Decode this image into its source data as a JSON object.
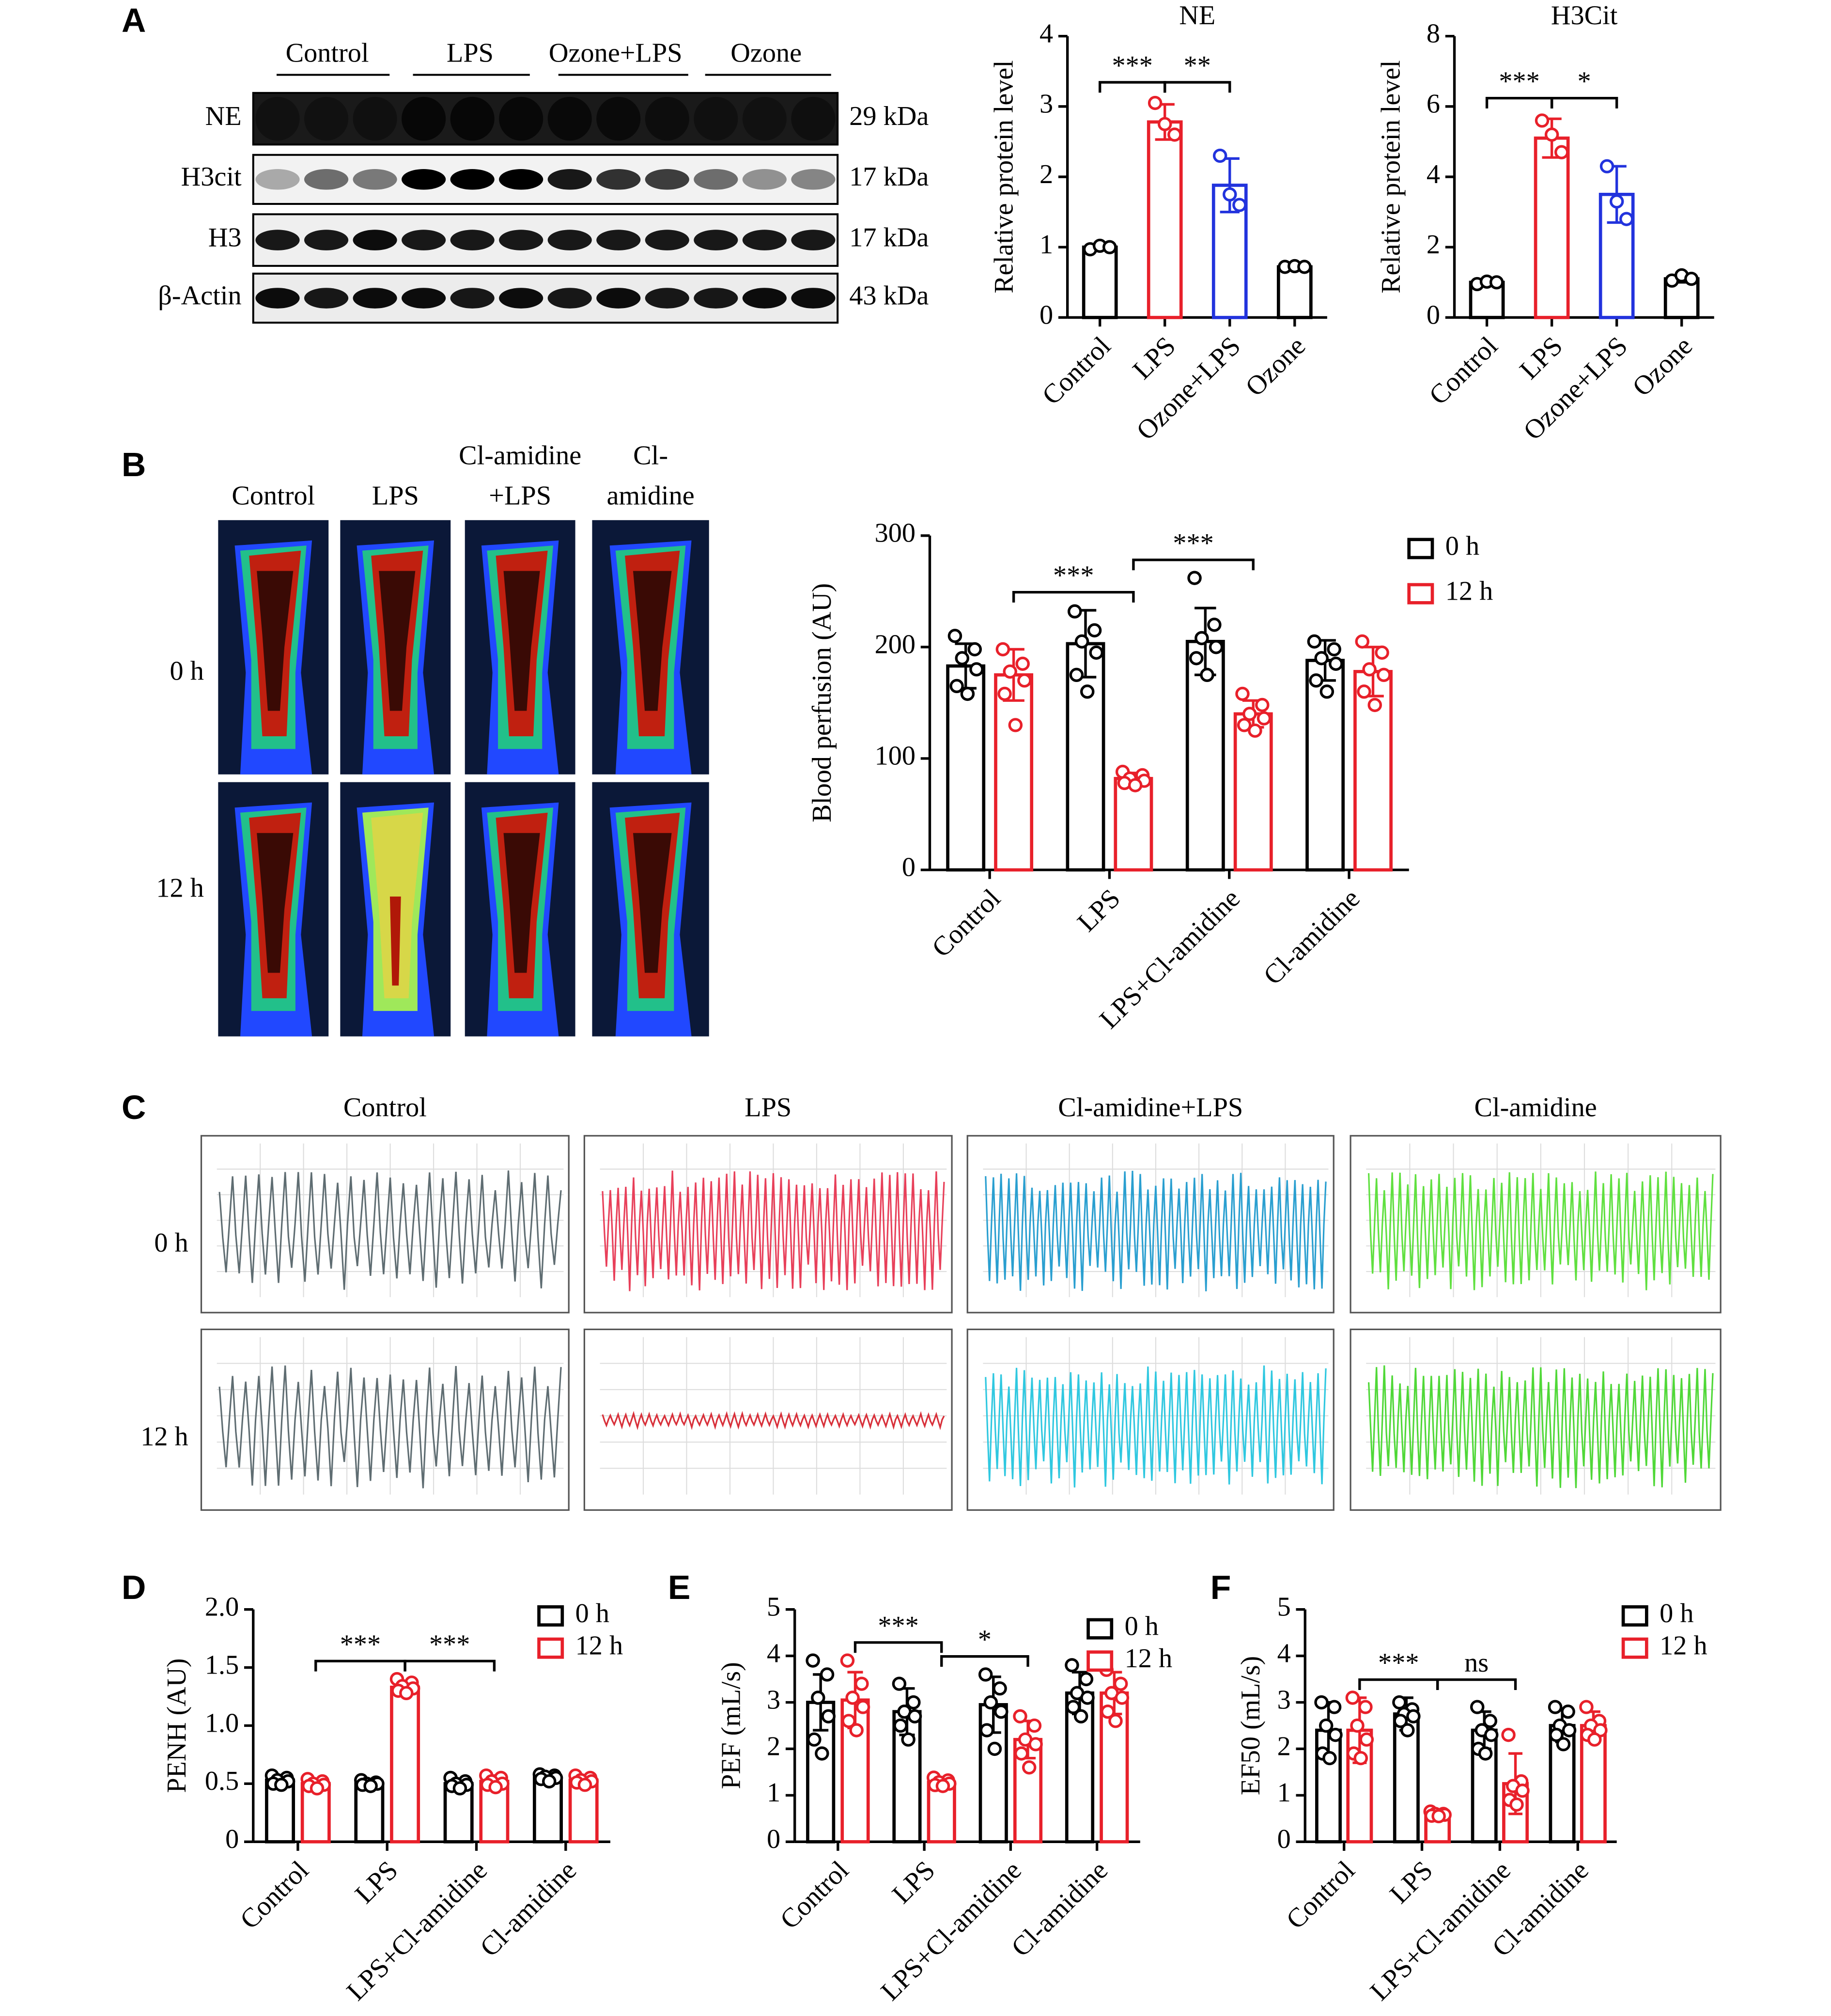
{
  "panel_labels": [
    "A",
    "B",
    "C",
    "D",
    "E",
    "F"
  ],
  "blot": {
    "lanes": [
      "Control",
      "LPS",
      "Ozone+LPS",
      "Ozone"
    ],
    "rows": [
      "NE",
      "H3cit",
      "H3",
      "β-Actin"
    ],
    "sizes": [
      "29 kDa",
      "17 kDa",
      "17 kDa",
      "43 kDa"
    ]
  },
  "perfusion": {
    "columns": [
      [
        "Control"
      ],
      [
        "LPS"
      ],
      [
        "Cl-amidine",
        "+LPS"
      ],
      [
        "Cl-",
        "amidine"
      ]
    ],
    "rows": [
      "0 h",
      "12 h"
    ]
  },
  "flow": {
    "columns": [
      "Control",
      "LPS",
      "Cl-amidine+LPS",
      "Cl-amidine"
    ],
    "rows": [
      "0 h",
      "12 h"
    ]
  },
  "chart_data": [
    {
      "type": "bar",
      "title": "NE",
      "ylabel": "Relative protein level",
      "categories": [
        "Control",
        "LPS",
        "Ozone+LPS",
        "Ozone"
      ],
      "colors": [
        "#000000",
        "#e8202a",
        "#2233dd",
        "#000000"
      ],
      "values": [
        1.0,
        2.78,
        1.88,
        0.72
      ],
      "errors": [
        0.04,
        0.25,
        0.38,
        0.02
      ],
      "points": [
        [
          0.97,
          1.02,
          1.0
        ],
        [
          3.05,
          2.75,
          2.6
        ],
        [
          2.3,
          1.75,
          1.6
        ],
        [
          0.72,
          0.73,
          0.72
        ]
      ],
      "ylim": [
        0,
        4
      ],
      "yticks": [
        0,
        1,
        2,
        3,
        4
      ],
      "annotations": [
        "***",
        "**"
      ]
    },
    {
      "type": "bar",
      "title": "H3Cit",
      "ylabel": "Relative protein level",
      "categories": [
        "Control",
        "LPS",
        "Ozone+LPS",
        "Ozone"
      ],
      "colors": [
        "#000000",
        "#e8202a",
        "#2233dd",
        "#000000"
      ],
      "values": [
        1.0,
        5.1,
        3.5,
        1.1
      ],
      "errors": [
        0.05,
        0.55,
        0.8,
        0.1
      ],
      "points": [
        [
          0.95,
          1.02,
          1.0
        ],
        [
          5.6,
          5.2,
          4.7
        ],
        [
          4.3,
          3.3,
          2.8
        ],
        [
          1.05,
          1.2,
          1.1
        ]
      ],
      "ylim": [
        0,
        8
      ],
      "yticks": [
        0,
        2,
        4,
        6,
        8
      ],
      "annotations": [
        "***",
        "*"
      ]
    },
    {
      "type": "bar",
      "ylabel": "Blood perfusion (AU)",
      "categories": [
        "Control",
        "LPS",
        "LPS+Cl-amidine",
        "Cl-amidine"
      ],
      "ylim": [
        0,
        300
      ],
      "yticks": [
        0,
        100,
        200,
        300
      ],
      "annotations": [
        "***",
        "***"
      ],
      "series": [
        {
          "name": "0 h",
          "color": "#000000",
          "values": [
            183,
            203,
            205,
            188
          ],
          "errors": [
            20,
            30,
            30,
            18
          ],
          "points": [
            [
              210,
              198,
              190,
              180,
              165,
              158
            ],
            [
              232,
              215,
              205,
              195,
              175,
              160
            ],
            [
              262,
              220,
              208,
              200,
              190,
              175
            ],
            [
              205,
              198,
              190,
              185,
              170,
              160
            ]
          ]
        },
        {
          "name": "12 h",
          "color": "#e8202a",
          "values": [
            175,
            82,
            140,
            178
          ],
          "errors": [
            23,
            5,
            12,
            22
          ],
          "points": [
            [
              198,
              185,
              178,
              170,
              158,
              130
            ],
            [
              88,
              85,
              82,
              80,
              78,
              76
            ],
            [
              158,
              148,
              140,
              136,
              130,
              125
            ],
            [
              205,
              195,
              180,
              175,
              160,
              148
            ]
          ]
        }
      ]
    },
    {
      "type": "bar",
      "ylabel": "PENH (AU)",
      "categories": [
        "Control",
        "LPS",
        "LPS+Cl-amidine",
        "Cl-amidine"
      ],
      "ylim": [
        0,
        2
      ],
      "yticks": [
        0,
        0.5,
        {
          "value": 1,
          "label": "1.0"
        },
        1.5,
        {
          "value": 2,
          "label": "2.0"
        }
      ],
      "annotations": [
        "***",
        "***"
      ],
      "series": [
        {
          "name": "0 h",
          "color": "#000000",
          "values": [
            0.53,
            0.5,
            0.5,
            0.55
          ],
          "errors": [
            0.04,
            0.03,
            0.04,
            0.03
          ],
          "points": [
            [
              0.57,
              0.55,
              0.53,
              0.52,
              0.5,
              0.49
            ],
            [
              0.53,
              0.51,
              0.5,
              0.5,
              0.49,
              0.48
            ],
            [
              0.55,
              0.52,
              0.5,
              0.49,
              0.48,
              0.46
            ],
            [
              0.58,
              0.57,
              0.56,
              0.55,
              0.54,
              0.52
            ]
          ]
        },
        {
          "name": "12 h",
          "color": "#e8202a",
          "values": [
            0.5,
            1.33,
            0.52,
            0.53
          ],
          "errors": [
            0.04,
            0.05,
            0.05,
            0.04
          ],
          "points": [
            [
              0.54,
              0.52,
              0.5,
              0.49,
              0.48,
              0.46
            ],
            [
              1.4,
              1.37,
              1.34,
              1.32,
              1.3,
              1.28
            ],
            [
              0.57,
              0.55,
              0.52,
              0.5,
              0.49,
              0.47
            ],
            [
              0.57,
              0.55,
              0.53,
              0.52,
              0.51,
              0.49
            ]
          ]
        }
      ]
    },
    {
      "type": "bar",
      "ylabel": "PEF (mL/s)",
      "categories": [
        "Control",
        "LPS",
        "LPS+Cl-amidine",
        "Cl-amidine"
      ],
      "ylim": [
        0,
        5
      ],
      "yticks": [
        0,
        1,
        2,
        3,
        4,
        5
      ],
      "annotations": [
        "***",
        "*"
      ],
      "series": [
        {
          "name": "0 h",
          "color": "#000000",
          "values": [
            3.0,
            2.8,
            2.95,
            3.2
          ],
          "errors": [
            0.6,
            0.5,
            0.6,
            0.45
          ],
          "points": [
            [
              3.9,
              3.6,
              3.1,
              2.7,
              2.2,
              1.9
            ],
            [
              3.4,
              3.0,
              2.8,
              2.7,
              2.5,
              2.2
            ],
            [
              3.6,
              3.3,
              3.0,
              2.8,
              2.4,
              2.0
            ],
            [
              3.8,
              3.5,
              3.2,
              3.1,
              2.9,
              2.7
            ]
          ]
        },
        {
          "name": "12 h",
          "color": "#e8202a",
          "values": [
            3.05,
            1.28,
            2.2,
            3.2
          ],
          "errors": [
            0.6,
            0.1,
            0.4,
            0.45
          ],
          "points": [
            [
              3.9,
              3.4,
              3.1,
              2.9,
              2.6,
              2.4
            ],
            [
              1.38,
              1.32,
              1.28,
              1.25,
              1.22,
              1.2
            ],
            [
              2.7,
              2.5,
              2.2,
              2.1,
              1.9,
              1.6
            ],
            [
              3.7,
              3.4,
              3.2,
              3.1,
              2.8,
              2.6
            ]
          ]
        }
      ]
    },
    {
      "type": "bar",
      "ylabel": "EF50 (mL/s)",
      "categories": [
        "Control",
        "LPS",
        "LPS+Cl-amidine",
        "Cl-amidine"
      ],
      "ylim": [
        0,
        5
      ],
      "yticks": [
        0,
        1,
        2,
        3,
        4,
        5
      ],
      "annotations": [
        "***",
        "ns"
      ],
      "series": [
        {
          "name": "0 h",
          "color": "#000000",
          "values": [
            2.4,
            2.75,
            2.4,
            2.5
          ],
          "errors": [
            0.6,
            0.35,
            0.4,
            0.35
          ],
          "points": [
            [
              3.0,
              2.9,
              2.5,
              2.3,
              1.9,
              1.8
            ],
            [
              3.0,
              2.85,
              2.75,
              2.7,
              2.6,
              2.4
            ],
            [
              2.9,
              2.6,
              2.4,
              2.3,
              2.0,
              1.9
            ],
            [
              2.9,
              2.8,
              2.5,
              2.4,
              2.3,
              2.1
            ]
          ]
        },
        {
          "name": "12 h",
          "color": "#e8202a",
          "values": [
            2.4,
            0.6,
            1.25,
            2.5
          ],
          "errors": [
            0.7,
            0.08,
            0.65,
            0.3
          ],
          "points": [
            [
              3.1,
              2.9,
              2.5,
              2.2,
              1.9,
              1.8
            ],
            [
              0.65,
              0.6,
              0.6,
              0.58,
              0.56,
              0.55
            ],
            [
              2.3,
              1.3,
              1.2,
              1.1,
              0.9,
              0.8
            ],
            [
              2.9,
              2.6,
              2.5,
              2.4,
              2.3,
              2.2
            ]
          ]
        }
      ]
    }
  ]
}
